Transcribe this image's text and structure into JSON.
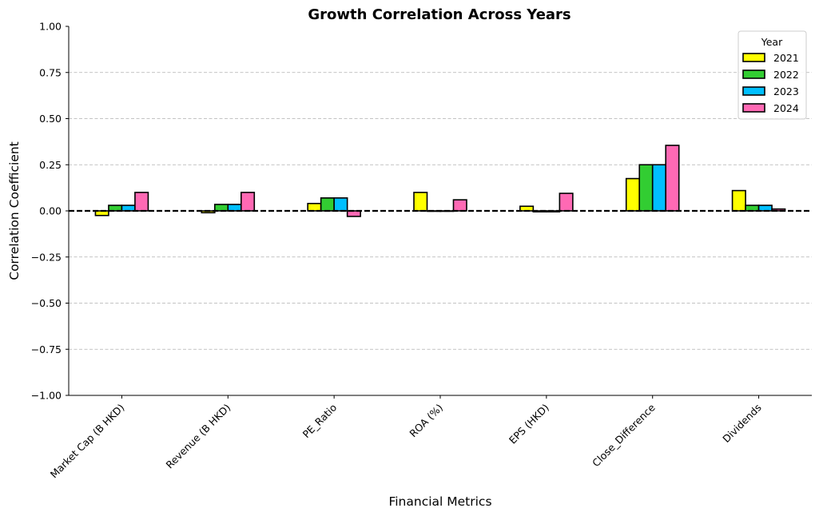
{
  "chart_data": {
    "type": "bar",
    "title": "Growth Correlation Across Years",
    "xlabel": "Financial Metrics",
    "ylabel": "Correlation Coefficient",
    "ylim": [
      -1.0,
      1.0
    ],
    "yticks": [
      -1.0,
      -0.75,
      -0.5,
      -0.25,
      0.0,
      0.25,
      0.5,
      0.75,
      1.0
    ],
    "ytick_labels": [
      "−1.00",
      "−0.75",
      "−0.50",
      "−0.25",
      "0.00",
      "0.25",
      "0.50",
      "0.75",
      "1.00"
    ],
    "grid": "horizontal dashed",
    "zero_line": "dashed black",
    "categories": [
      "Market Cap (B HKD)",
      "Revenue (B HKD)",
      "PE_Ratio",
      "ROA (%)",
      "EPS (HKD)",
      "Close_Difference",
      "Dividends"
    ],
    "legend": {
      "title": "Year",
      "position": "top-right"
    },
    "series": [
      {
        "name": "2021",
        "color": "#FFFF00",
        "values": [
          -0.025,
          -0.01,
          0.04,
          0.1,
          0.025,
          0.175,
          0.11
        ]
      },
      {
        "name": "2022",
        "color": "#32CD32",
        "values": [
          0.03,
          0.035,
          0.07,
          0.0,
          -0.005,
          0.25,
          0.03
        ]
      },
      {
        "name": "2023",
        "color": "#00BFFF",
        "values": [
          0.03,
          0.035,
          0.07,
          0.0,
          -0.005,
          0.25,
          0.03
        ]
      },
      {
        "name": "2024",
        "color": "#FF69B4",
        "values": [
          0.1,
          0.1,
          -0.03,
          0.06,
          0.095,
          0.355,
          0.01
        ]
      }
    ]
  }
}
